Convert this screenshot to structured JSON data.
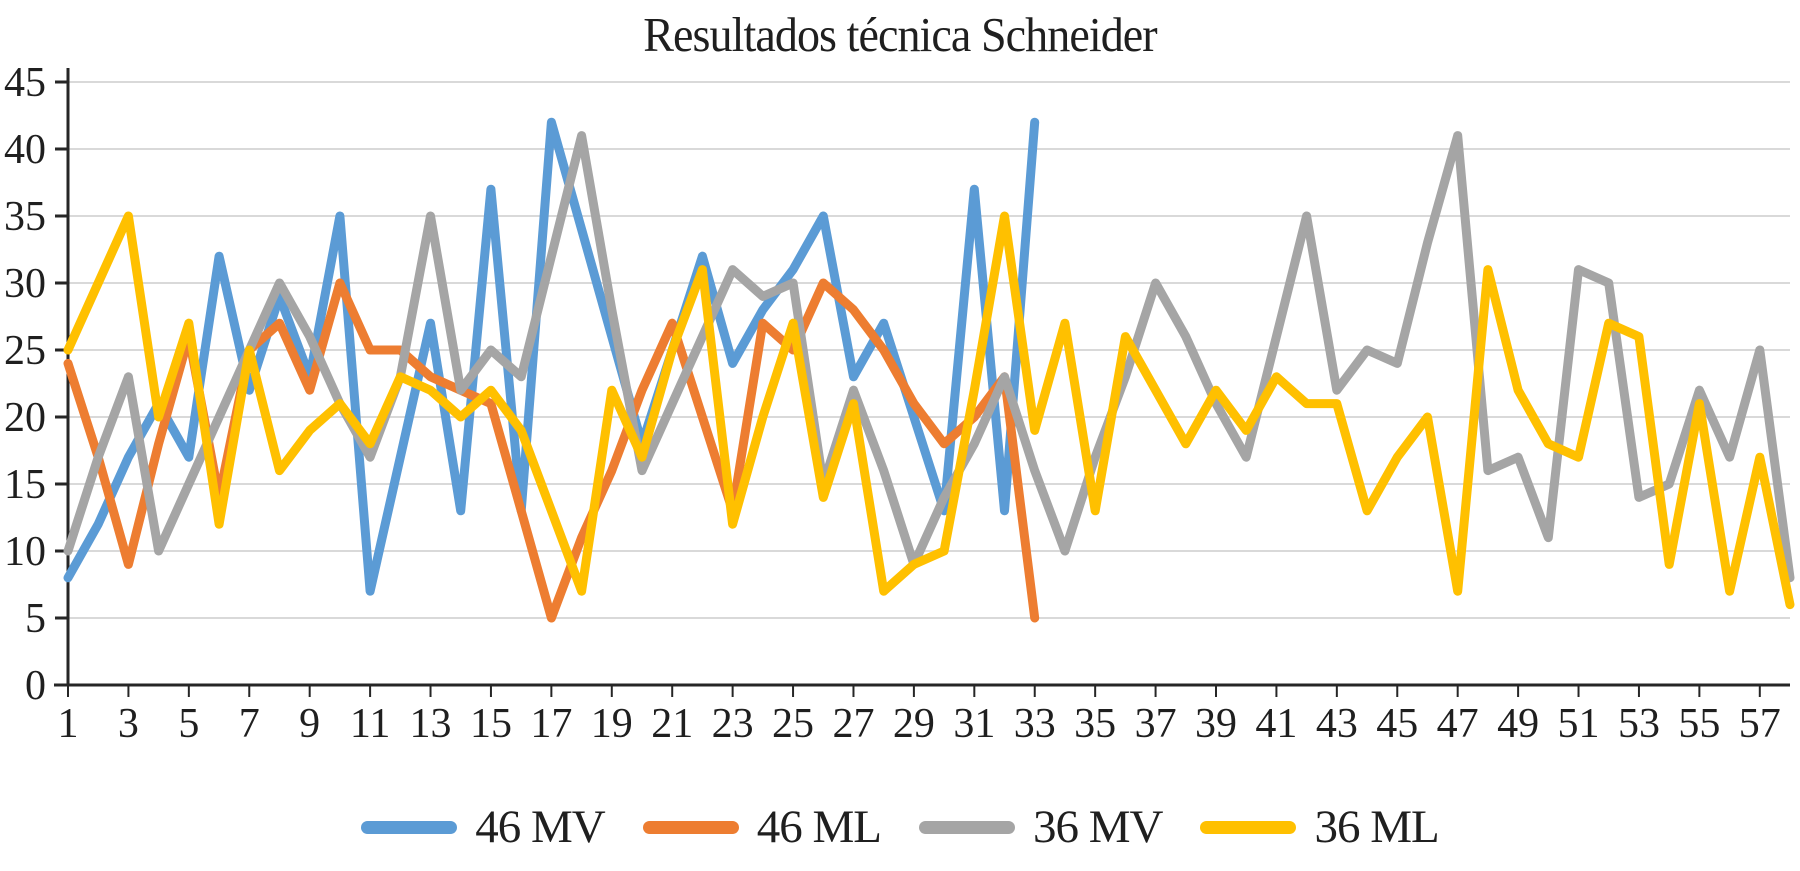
{
  "title": "Resultados técnica Schneider",
  "chart_data": {
    "type": "line",
    "title": "Resultados técnica Schneider",
    "xlabel": "",
    "ylabel": "",
    "ylim": [
      0,
      45
    ],
    "grid": true,
    "legend_position": "bottom",
    "x_tick_labels": [
      "1",
      "3",
      "5",
      "7",
      "9",
      "11",
      "13",
      "15",
      "17",
      "19",
      "21",
      "23",
      "25",
      "27",
      "29",
      "31",
      "33",
      "35",
      "37",
      "39",
      "41",
      "43",
      "45",
      "47",
      "49",
      "51",
      "53",
      "55",
      "57"
    ],
    "y_tick_labels": [
      "45",
      "40",
      "35",
      "30",
      "25",
      "20",
      "15",
      "10",
      "5",
      "0"
    ],
    "y_ticks": [
      0,
      5,
      10,
      15,
      20,
      25,
      30,
      35,
      40,
      45
    ],
    "x_count": 58,
    "series": [
      {
        "name": "46 MV",
        "color": "#5B9BD5",
        "values": [
          8,
          12,
          17,
          21,
          17,
          32,
          22,
          29,
          23,
          35,
          7,
          17,
          27,
          13,
          37,
          13,
          42,
          34,
          26,
          18,
          25,
          32,
          24,
          28,
          31,
          35,
          23,
          27,
          20,
          13,
          37,
          13,
          42
        ]
      },
      {
        "name": "46 ML",
        "color": "#ED7D31",
        "values": [
          24,
          17,
          9,
          18,
          26,
          14,
          25,
          27,
          22,
          30,
          25,
          25,
          23,
          22,
          21,
          13,
          5,
          11,
          16,
          22,
          27,
          20,
          13,
          27,
          25,
          30,
          28,
          25,
          21,
          18,
          20,
          23,
          5
        ]
      },
      {
        "name": "36 MV",
        "color": "#A5A5A5",
        "values": [
          10,
          17,
          23,
          10,
          15,
          20,
          25,
          30,
          26,
          21,
          17,
          23,
          35,
          22,
          25,
          23,
          32,
          41,
          28,
          16,
          21,
          26,
          31,
          29,
          30,
          15,
          22,
          16,
          9,
          14,
          18,
          23,
          16,
          10,
          17,
          23,
          30,
          26,
          21,
          17,
          26,
          35,
          22,
          25,
          24,
          33,
          41,
          16,
          17,
          11,
          31,
          30,
          14,
          15,
          22,
          17,
          25,
          8
        ]
      },
      {
        "name": "36 ML",
        "color": "#FFC000",
        "values": [
          25,
          30,
          35,
          20,
          27,
          12,
          25,
          16,
          19,
          21,
          18,
          23,
          22,
          20,
          22,
          19,
          13,
          7,
          22,
          17,
          25,
          31,
          12,
          20,
          27,
          14,
          21,
          7,
          9,
          10,
          22,
          35,
          19,
          27,
          13,
          26,
          22,
          18,
          22,
          19,
          23,
          21,
          21,
          13,
          17,
          20,
          7,
          31,
          22,
          18,
          17,
          27,
          26,
          9,
          21,
          7,
          17,
          6
        ]
      }
    ],
    "axis_color": "#262626",
    "gridline_color": "#d9d9d9"
  }
}
